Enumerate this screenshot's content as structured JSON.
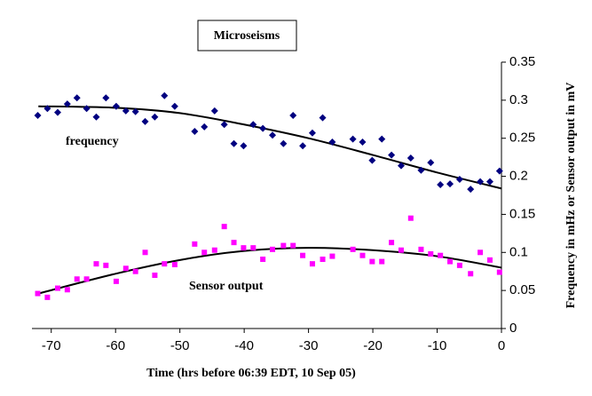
{
  "chart_data": {
    "type": "scatter",
    "title": "Microseisms",
    "x_label": "Time (hrs before 06:39 EDT, 10 Sep  05)",
    "y_label": "Frequency in mHz or Sensor output  in mV",
    "annotations": [
      "frequency",
      "Sensor output"
    ],
    "xlim": [
      -73,
      0
    ],
    "xticks": [
      -70,
      -60,
      -50,
      -40,
      -30,
      -20,
      -10,
      0
    ],
    "ylim": [
      0,
      0.35
    ],
    "yticks": [
      0,
      0.05,
      0.1,
      0.15,
      0.2,
      0.25,
      0.3,
      0.35
    ],
    "series": [
      {
        "name": "frequency",
        "color": "#000080",
        "marker": "diamond",
        "x": [
          -72.1,
          -70.6,
          -69.0,
          -67.5,
          -66.0,
          -64.5,
          -63.0,
          -61.5,
          -59.9,
          -58.4,
          -56.9,
          -55.4,
          -53.9,
          -52.4,
          -50.8,
          -47.7,
          -46.2,
          -44.6,
          -43.1,
          -41.6,
          -40.1,
          -38.6,
          -37.1,
          -35.6,
          -33.9,
          -32.4,
          -30.9,
          -29.4,
          -27.8,
          -26.3,
          -23.1,
          -21.6,
          -20.1,
          -18.6,
          -17.1,
          -15.6,
          -14.1,
          -12.5,
          -11.0,
          -9.5,
          -8.0,
          -6.5,
          -4.8,
          -3.3,
          -1.8,
          -0.3
        ],
        "values": [
          0.28,
          0.289,
          0.284,
          0.295,
          0.303,
          0.289,
          0.278,
          0.303,
          0.292,
          0.286,
          0.285,
          0.272,
          0.278,
          0.306,
          0.292,
          0.259,
          0.265,
          0.286,
          0.268,
          0.243,
          0.24,
          0.268,
          0.263,
          0.254,
          0.243,
          0.28,
          0.24,
          0.257,
          0.277,
          0.245,
          0.249,
          0.245,
          0.221,
          0.249,
          0.228,
          0.214,
          0.224,
          0.208,
          0.218,
          0.189,
          0.19,
          0.196,
          0.183,
          0.193,
          0.193,
          0.207
        ],
        "trendline": {
          "x": [
            -72,
            -60,
            -50,
            -40,
            -30,
            -20,
            -10,
            0
          ],
          "values": [
            0.292,
            0.29,
            0.283,
            0.268,
            0.25,
            0.228,
            0.205,
            0.184
          ]
        }
      },
      {
        "name": "Sensor output",
        "color": "#ff00ff",
        "marker": "square",
        "x": [
          -72.1,
          -70.6,
          -69.0,
          -67.5,
          -66.0,
          -64.5,
          -63.0,
          -61.5,
          -59.9,
          -58.4,
          -56.9,
          -55.4,
          -53.9,
          -52.4,
          -50.8,
          -47.7,
          -46.2,
          -44.6,
          -43.1,
          -41.6,
          -40.1,
          -38.6,
          -37.1,
          -35.6,
          -33.9,
          -32.4,
          -30.9,
          -29.4,
          -27.8,
          -26.3,
          -23.1,
          -21.6,
          -20.1,
          -18.6,
          -17.1,
          -15.6,
          -14.1,
          -12.5,
          -11.0,
          -9.5,
          -8.0,
          -6.5,
          -4.8,
          -3.3,
          -1.8,
          -0.3
        ],
        "values": [
          0.046,
          0.041,
          0.053,
          0.051,
          0.065,
          0.065,
          0.085,
          0.083,
          0.062,
          0.079,
          0.075,
          0.1,
          0.07,
          0.085,
          0.084,
          0.111,
          0.1,
          0.103,
          0.134,
          0.113,
          0.106,
          0.106,
          0.091,
          0.104,
          0.109,
          0.109,
          0.096,
          0.085,
          0.091,
          0.095,
          0.104,
          0.096,
          0.088,
          0.088,
          0.113,
          0.103,
          0.145,
          0.104,
          0.098,
          0.096,
          0.088,
          0.083,
          0.072,
          0.1,
          0.09,
          0.074
        ],
        "trendline": {
          "x": [
            -72,
            -60,
            -50,
            -40,
            -30,
            -20,
            -10,
            0
          ],
          "values": [
            0.046,
            0.072,
            0.09,
            0.102,
            0.106,
            0.103,
            0.095,
            0.08
          ]
        }
      }
    ]
  }
}
